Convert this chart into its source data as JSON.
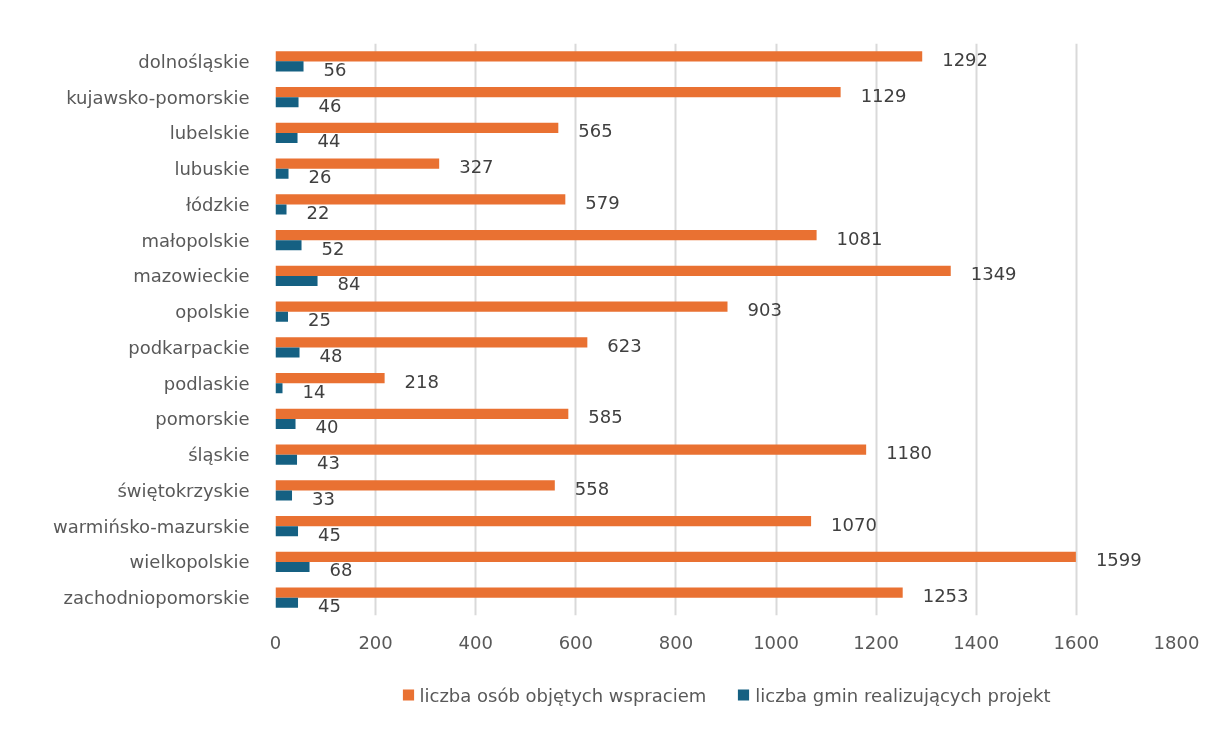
{
  "chart_data": {
    "type": "bar",
    "orientation": "horizontal",
    "categories": [
      "dolnośląskie",
      "kujawsko-pomorskie",
      "lubelskie",
      "lubuskie",
      "łódzkie",
      "małopolskie",
      "mazowieckie",
      "opolskie",
      "podkarpackie",
      "podlaskie",
      "pomorskie",
      "śląskie",
      "świętokrzyskie",
      "warmińsko-mazurskie",
      "wielkopolskie",
      "zachodniopomorskie"
    ],
    "series": [
      {
        "name": "liczba osób objętych wspraciem",
        "color": "#e97132",
        "values": [
          1292,
          1129,
          565,
          327,
          579,
          1081,
          1349,
          903,
          623,
          218,
          585,
          1180,
          558,
          1070,
          1599,
          1253
        ]
      },
      {
        "name": "liczba gmin realizujących projekt",
        "color": "#156082",
        "values": [
          56,
          46,
          44,
          26,
          22,
          52,
          84,
          25,
          48,
          14,
          40,
          43,
          33,
          45,
          68,
          45
        ]
      }
    ],
    "xlim": [
      0,
      1800
    ],
    "xticks": [
      0,
      200,
      400,
      600,
      800,
      1000,
      1200,
      1400,
      1600,
      1800
    ],
    "grid": "x",
    "legend": "bottom",
    "data_labels": true
  }
}
